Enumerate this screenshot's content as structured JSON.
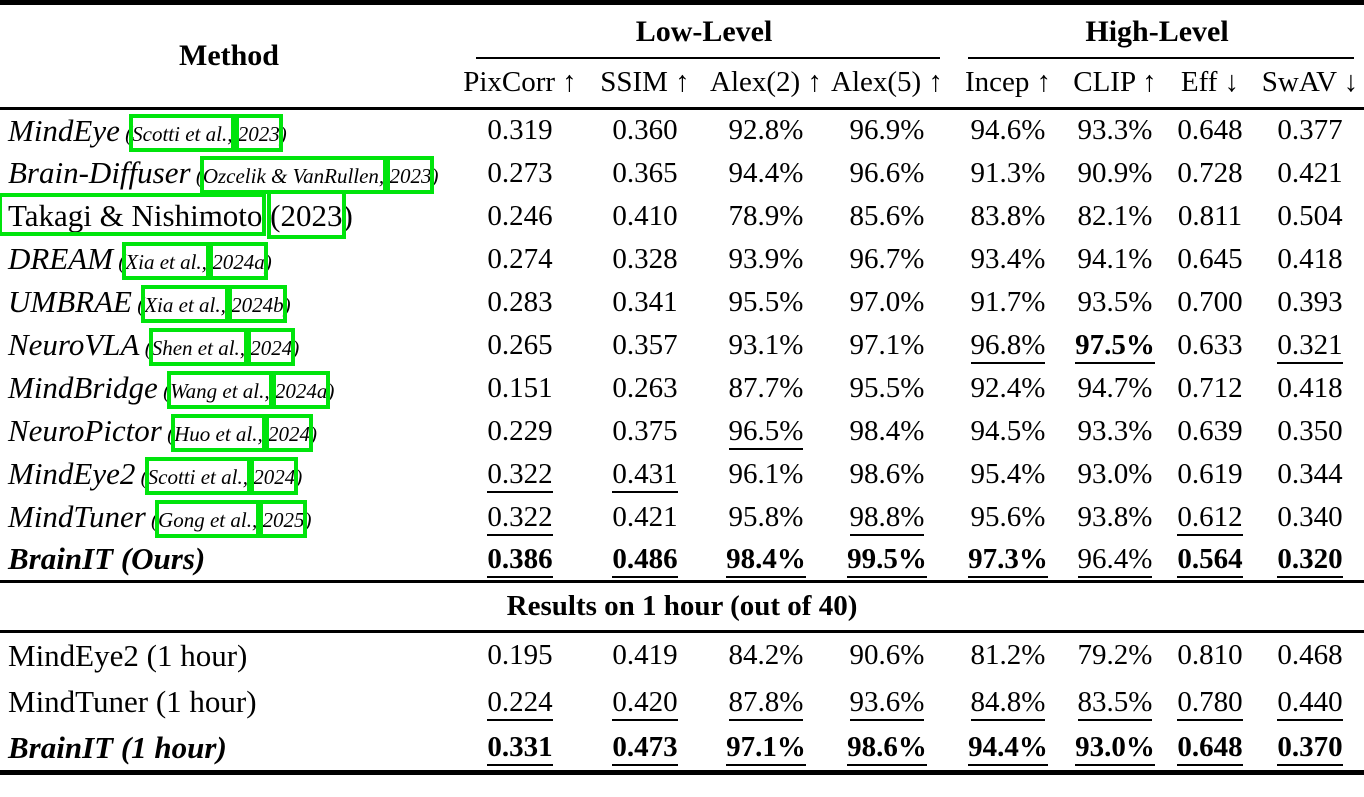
{
  "page": {
    "background": "#ffffff",
    "text_color": "#000000",
    "link_box_color": "#00e40c",
    "rule_color": "#000000"
  },
  "table": {
    "method_header": "Method",
    "groups": [
      {
        "label": "Low-Level",
        "span": 4
      },
      {
        "label": "High-Level",
        "span": 4
      }
    ],
    "columns": [
      {
        "label": "PixCorr",
        "arrow": "↑"
      },
      {
        "label": "SSIM",
        "arrow": "↑"
      },
      {
        "label": "Alex(2)",
        "arrow": "↑"
      },
      {
        "label": "Alex(5)",
        "arrow": "↑"
      },
      {
        "label": "Incep",
        "arrow": "↑"
      },
      {
        "label": "CLIP",
        "arrow": "↑"
      },
      {
        "label": "Eff",
        "arrow": "↓"
      },
      {
        "label": "SwAV",
        "arrow": "↓"
      }
    ],
    "style_legend": {
      "p": "plain",
      "u": "underlined (second best)",
      "bu": "bold underlined (best)"
    },
    "main_rows": [
      {
        "method": {
          "name": "MindEye",
          "style": "italic",
          "boxed_name": false,
          "cite_pre": "(",
          "cite_links": [
            "Scotti et al.,",
            "2023"
          ],
          "cite_post": ")",
          "cite_size": "small"
        },
        "values": [
          [
            "0.319",
            "p"
          ],
          [
            "0.360",
            "p"
          ],
          [
            "92.8%",
            "p"
          ],
          [
            "96.9%",
            "p"
          ],
          [
            "94.6%",
            "p"
          ],
          [
            "93.3%",
            "p"
          ],
          [
            "0.648",
            "p"
          ],
          [
            "0.377",
            "p"
          ]
        ]
      },
      {
        "method": {
          "name": "Brain-Diffuser",
          "style": "italic",
          "boxed_name": false,
          "cite_pre": "(",
          "cite_links": [
            "Ozcelik & VanRullen,",
            "2023"
          ],
          "cite_post": ")",
          "cite_size": "small"
        },
        "values": [
          [
            "0.273",
            "p"
          ],
          [
            "0.365",
            "p"
          ],
          [
            "94.4%",
            "p"
          ],
          [
            "96.6%",
            "p"
          ],
          [
            "91.3%",
            "p"
          ],
          [
            "90.9%",
            "p"
          ],
          [
            "0.728",
            "p"
          ],
          [
            "0.421",
            "p"
          ]
        ]
      },
      {
        "method": {
          "name": "Takagi & Nishimoto",
          "style": "roman",
          "boxed_name": true,
          "cite_pre": "",
          "cite_links": [
            "(2023"
          ],
          "cite_post": ")",
          "cite_size": "large"
        },
        "values": [
          [
            "0.246",
            "p"
          ],
          [
            "0.410",
            "p"
          ],
          [
            "78.9%",
            "p"
          ],
          [
            "85.6%",
            "p"
          ],
          [
            "83.8%",
            "p"
          ],
          [
            "82.1%",
            "p"
          ],
          [
            "0.811",
            "p"
          ],
          [
            "0.504",
            "p"
          ]
        ]
      },
      {
        "method": {
          "name": "DREAM",
          "style": "italic",
          "boxed_name": false,
          "cite_pre": "(",
          "cite_links": [
            "Xia et al.,",
            "2024a"
          ],
          "cite_post": ")",
          "cite_size": "small"
        },
        "values": [
          [
            "0.274",
            "p"
          ],
          [
            "0.328",
            "p"
          ],
          [
            "93.9%",
            "p"
          ],
          [
            "96.7%",
            "p"
          ],
          [
            "93.4%",
            "p"
          ],
          [
            "94.1%",
            "p"
          ],
          [
            "0.645",
            "p"
          ],
          [
            "0.418",
            "p"
          ]
        ]
      },
      {
        "method": {
          "name": "UMBRAE",
          "style": "italic",
          "boxed_name": false,
          "cite_pre": "(",
          "cite_links": [
            "Xia et al.,",
            "2024b"
          ],
          "cite_post": ")",
          "cite_size": "small"
        },
        "values": [
          [
            "0.283",
            "p"
          ],
          [
            "0.341",
            "p"
          ],
          [
            "95.5%",
            "p"
          ],
          [
            "97.0%",
            "p"
          ],
          [
            "91.7%",
            "p"
          ],
          [
            "93.5%",
            "p"
          ],
          [
            "0.700",
            "p"
          ],
          [
            "0.393",
            "p"
          ]
        ]
      },
      {
        "method": {
          "name": "NeuroVLA",
          "style": "italic",
          "boxed_name": false,
          "cite_pre": "(",
          "cite_links": [
            "Shen et al.,",
            "2024"
          ],
          "cite_post": ")",
          "cite_size": "small"
        },
        "values": [
          [
            "0.265",
            "p"
          ],
          [
            "0.357",
            "p"
          ],
          [
            "93.1%",
            "p"
          ],
          [
            "97.1%",
            "p"
          ],
          [
            "96.8%",
            "u"
          ],
          [
            "97.5%",
            "bu"
          ],
          [
            "0.633",
            "p"
          ],
          [
            "0.321",
            "u"
          ]
        ]
      },
      {
        "method": {
          "name": "MindBridge",
          "style": "italic",
          "boxed_name": false,
          "cite_pre": "(",
          "cite_links": [
            "Wang et al.,",
            "2024a"
          ],
          "cite_post": ")",
          "cite_size": "small"
        },
        "values": [
          [
            "0.151",
            "p"
          ],
          [
            "0.263",
            "p"
          ],
          [
            "87.7%",
            "p"
          ],
          [
            "95.5%",
            "p"
          ],
          [
            "92.4%",
            "p"
          ],
          [
            "94.7%",
            "p"
          ],
          [
            "0.712",
            "p"
          ],
          [
            "0.418",
            "p"
          ]
        ]
      },
      {
        "method": {
          "name": "NeuroPictor",
          "style": "italic",
          "boxed_name": false,
          "cite_pre": "(",
          "cite_links": [
            "Huo et al.,",
            "2024"
          ],
          "cite_post": ")",
          "cite_size": "small"
        },
        "values": [
          [
            "0.229",
            "p"
          ],
          [
            "0.375",
            "p"
          ],
          [
            "96.5%",
            "u"
          ],
          [
            "98.4%",
            "p"
          ],
          [
            "94.5%",
            "p"
          ],
          [
            "93.3%",
            "p"
          ],
          [
            "0.639",
            "p"
          ],
          [
            "0.350",
            "p"
          ]
        ]
      },
      {
        "method": {
          "name": "MindEye2",
          "style": "italic",
          "boxed_name": false,
          "cite_pre": "(",
          "cite_links": [
            "Scotti et al.,",
            "2024"
          ],
          "cite_post": ")",
          "cite_size": "small"
        },
        "values": [
          [
            "0.322",
            "u"
          ],
          [
            "0.431",
            "u"
          ],
          [
            "96.1%",
            "p"
          ],
          [
            "98.6%",
            "p"
          ],
          [
            "95.4%",
            "p"
          ],
          [
            "93.0%",
            "p"
          ],
          [
            "0.619",
            "p"
          ],
          [
            "0.344",
            "p"
          ]
        ]
      },
      {
        "method": {
          "name": "MindTuner",
          "style": "italic",
          "boxed_name": false,
          "cite_pre": "(",
          "cite_links": [
            "Gong et al.,",
            "2025"
          ],
          "cite_post": ")",
          "cite_size": "small"
        },
        "values": [
          [
            "0.322",
            "u"
          ],
          [
            "0.421",
            "p"
          ],
          [
            "95.8%",
            "p"
          ],
          [
            "98.8%",
            "u"
          ],
          [
            "95.6%",
            "p"
          ],
          [
            "93.8%",
            "p"
          ],
          [
            "0.612",
            "u"
          ],
          [
            "0.340",
            "p"
          ]
        ]
      },
      {
        "method": {
          "name": "BrainIT (Ours)",
          "style": "bold-italic",
          "boxed_name": false,
          "cite_pre": "",
          "cite_links": [],
          "cite_post": "",
          "cite_size": "small"
        },
        "values": [
          [
            "0.386",
            "bu"
          ],
          [
            "0.486",
            "bu"
          ],
          [
            "98.4%",
            "bu"
          ],
          [
            "99.5%",
            "bu"
          ],
          [
            "97.3%",
            "bu"
          ],
          [
            "96.4%",
            "u"
          ],
          [
            "0.564",
            "bu"
          ],
          [
            "0.320",
            "bu"
          ]
        ]
      }
    ],
    "section_heading": "Results on 1 hour (out of 40)",
    "hour_rows": [
      {
        "method": {
          "name": "MindEye2 (1 hour)",
          "style": "roman",
          "boxed_name": false,
          "cite_pre": "",
          "cite_links": [],
          "cite_post": "",
          "cite_size": "small"
        },
        "values": [
          [
            "0.195",
            "p"
          ],
          [
            "0.419",
            "p"
          ],
          [
            "84.2%",
            "p"
          ],
          [
            "90.6%",
            "p"
          ],
          [
            "81.2%",
            "p"
          ],
          [
            "79.2%",
            "p"
          ],
          [
            "0.810",
            "p"
          ],
          [
            "0.468",
            "p"
          ]
        ]
      },
      {
        "method": {
          "name": "MindTuner (1 hour)",
          "style": "roman",
          "boxed_name": false,
          "cite_pre": "",
          "cite_links": [],
          "cite_post": "",
          "cite_size": "small"
        },
        "values": [
          [
            "0.224",
            "u"
          ],
          [
            "0.420",
            "u"
          ],
          [
            "87.8%",
            "u"
          ],
          [
            "93.6%",
            "u"
          ],
          [
            "84.8%",
            "u"
          ],
          [
            "83.5%",
            "u"
          ],
          [
            "0.780",
            "u"
          ],
          [
            "0.440",
            "u"
          ]
        ]
      },
      {
        "method": {
          "name": "BrainIT (1 hour)",
          "style": "bold-italic",
          "boxed_name": false,
          "cite_pre": "",
          "cite_links": [],
          "cite_post": "",
          "cite_size": "small"
        },
        "values": [
          [
            "0.331",
            "bu"
          ],
          [
            "0.473",
            "bu"
          ],
          [
            "97.1%",
            "bu"
          ],
          [
            "98.6%",
            "bu"
          ],
          [
            "94.4%",
            "bu"
          ],
          [
            "93.0%",
            "bu"
          ],
          [
            "0.648",
            "bu"
          ],
          [
            "0.370",
            "bu"
          ]
        ]
      }
    ]
  }
}
